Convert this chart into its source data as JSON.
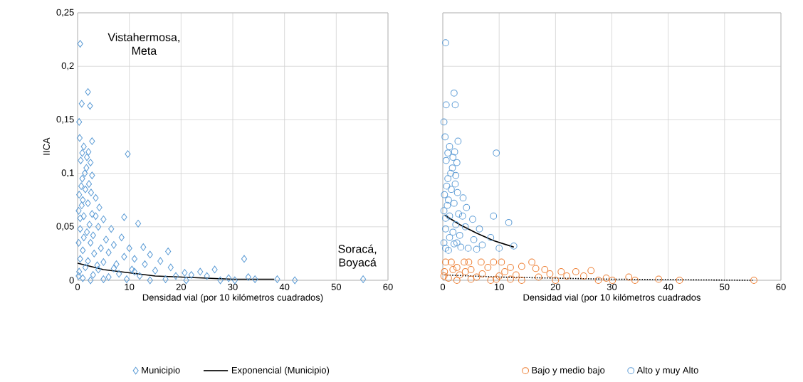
{
  "chart_data": [
    {
      "type": "scatter",
      "xlabel": "Densidad vial (por 10 kilómetros cuadrados)",
      "ylabel": "IICA",
      "xlim": [
        0,
        60
      ],
      "xticks": [
        0,
        10,
        20,
        30,
        40,
        50,
        60
      ],
      "ylim": [
        0,
        0.25
      ],
      "yticks": [
        {
          "value": 0,
          "label": "0"
        },
        {
          "value": 0.05,
          "label": "0,05"
        },
        {
          "value": 0.1,
          "label": "0,1"
        },
        {
          "value": 0.15,
          "label": "0,15"
        },
        {
          "value": 0.2,
          "label": "0,2"
        },
        {
          "value": 0.25,
          "label": "0,25"
        }
      ],
      "grid": true,
      "legend": "bottom",
      "annotations": [
        {
          "text": "Vistahermosa, Meta",
          "x": 0.5,
          "y": 0.221
        },
        {
          "text": "Soracá, Boyacá",
          "x": 55.2,
          "y": 0.001
        }
      ],
      "series": [
        {
          "name": "Municipio",
          "type": "scatter",
          "marker": "diamond",
          "color": "#5b9bd5",
          "x": [
            0.5,
            2,
            0.8,
            2.4,
            0.3,
            0.4,
            2.8,
            9.7,
            1.2,
            1.8,
            2.5,
            0.6,
            2.8,
            1.4,
            0.9,
            2.2,
            0.3,
            1.5,
            3.5,
            0.8,
            2,
            0.2,
            1.2,
            2.8,
            9,
            11.7,
            5,
            4,
            6.5,
            0.5,
            1.8,
            3,
            8.5,
            5.5,
            0.2,
            2.5,
            7,
            10,
            12.7,
            4.5,
            1,
            17.5,
            6,
            14,
            3.2,
            9,
            11,
            0.5,
            2,
            16,
            32.2,
            5,
            13,
            7.5,
            18,
            1.5,
            4,
            10.5,
            15,
            20.7,
            23.7,
            26.5,
            22,
            19,
            8,
            0.3,
            3,
            12,
            6,
            25,
            27.6,
            29.2,
            30.4,
            33,
            34.3,
            38.6,
            42,
            55.2,
            1,
            2.5,
            5,
            9.5,
            14,
            17,
            21,
            0.2,
            11,
            7,
            3.8,
            1.2,
            0.5,
            2.3,
            3.5,
            4.2,
            1,
            0.7,
            2.6,
            1.7,
            0.9,
            2.1
          ],
          "values": [
            0.221,
            0.176,
            0.165,
            0.163,
            0.148,
            0.133,
            0.13,
            0.118,
            0.125,
            0.115,
            0.11,
            0.112,
            0.098,
            0.1,
            0.095,
            0.09,
            0.08,
            0.085,
            0.077,
            0.07,
            0.072,
            0.065,
            0.06,
            0.062,
            0.059,
            0.053,
            0.057,
            0.05,
            0.048,
            0.048,
            0.045,
            0.042,
            0.04,
            0.038,
            0.035,
            0.035,
            0.033,
            0.03,
            0.031,
            0.03,
            0.028,
            0.027,
            0.026,
            0.024,
            0.025,
            0.022,
            0.02,
            0.02,
            0.018,
            0.018,
            0.02,
            0.017,
            0.015,
            0.015,
            0.012,
            0.012,
            0.01,
            0.01,
            0.009,
            0.007,
            0.008,
            0.01,
            0.005,
            0.004,
            0.006,
            0.008,
            0.005,
            0.004,
            0.003,
            0.004,
            0,
            0.002,
            0,
            0.003,
            0.001,
            0.001,
            0,
            0.001,
            0.002,
            0,
            0.001,
            0.001,
            0,
            0.001,
            0,
            0.004,
            0.008,
            0.011,
            0.014,
            0.04,
            0.058,
            0.052,
            0.06,
            0.068,
            0.075,
            0.088,
            0.082,
            0.105,
            0.119,
            0.12
          ]
        },
        {
          "name": "Exponencial (Municipio)",
          "type": "line",
          "marker": "none",
          "line_style": "solid",
          "color": "#000000",
          "x": [
            0,
            5,
            10,
            15,
            20,
            25,
            30,
            38
          ],
          "values": [
            0.016,
            0.01,
            0.007,
            0.004,
            0.003,
            0.002,
            0.001,
            0.001
          ]
        }
      ]
    },
    {
      "type": "scatter",
      "xlabel": "Densidad vial (por 10 kilómetros cuadrados",
      "xlim": [
        0,
        60
      ],
      "xticks": [
        0,
        10,
        20,
        30,
        40,
        50,
        60
      ],
      "ylim": [
        0,
        0.25
      ],
      "yticks": [
        {
          "value": 0,
          "label": null
        },
        {
          "value": 0.05,
          "label": null
        },
        {
          "value": 0.1,
          "label": null
        },
        {
          "value": 0.15,
          "label": null
        },
        {
          "value": 0.2,
          "label": null
        },
        {
          "value": 0.25,
          "label": null
        }
      ],
      "tick_labels": "x",
      "grid": true,
      "legend": "bottom",
      "series": [
        {
          "name": "Bajo y medio bajo",
          "type": "scatter",
          "marker": "circle",
          "color": "#ed7d31",
          "x": [
            0.5,
            1.5,
            3.8,
            4.6,
            6.8,
            9,
            10.4,
            15.8,
            18.1,
            21,
            23.6,
            26.3,
            27.6,
            30.1,
            33,
            34.1,
            38.3,
            42,
            55.2,
            14,
            12,
            16.5,
            8,
            2.5,
            5,
            11,
            19,
            13,
            7,
            0.3,
            3,
            17,
            22,
            25,
            29,
            1,
            2.5,
            5,
            9.5,
            14,
            20,
            0.2,
            6,
            10,
            4,
            1.8,
            12,
            8.5
          ],
          "values": [
            0.017,
            0.017,
            0.017,
            0.017,
            0.017,
            0.017,
            0.017,
            0.017,
            0.01,
            0.008,
            0.008,
            0.009,
            0,
            0,
            0.003,
            0,
            0.001,
            0,
            0,
            0.013,
            0.012,
            0.011,
            0.012,
            0.012,
            0.01,
            0.008,
            0.006,
            0.005,
            0.006,
            0.008,
            0.005,
            0.003,
            0.004,
            0.004,
            0.002,
            0.002,
            0,
            0.001,
            0.001,
            0,
            0,
            0.004,
            0.003,
            0.004,
            0.008,
            0.01,
            0.001,
            0
          ]
        },
        {
          "name": "Alto y muy Alto",
          "type": "scatter",
          "marker": "circle",
          "color": "#5b9bd5",
          "x": [
            0.5,
            2,
            0.6,
            2.2,
            0.2,
            0.4,
            2.7,
            9.5,
            1.2,
            1.8,
            2.5,
            0.6,
            2.3,
            1.4,
            0.9,
            2.2,
            0.3,
            1.5,
            3.6,
            0.8,
            2,
            0.2,
            1.2,
            2.8,
            9,
            11.7,
            5.3,
            4,
            6.5,
            0.5,
            1.8,
            3,
            8.5,
            5.5,
            0.2,
            2.5,
            7,
            10,
            12.6,
            4.5,
            1,
            3.2,
            6,
            0.5,
            2,
            1.2,
            0.5,
            2.3,
            3.5,
            4.2,
            1,
            0.7,
            2.6,
            1.7,
            0.9,
            2.1
          ],
          "values": [
            0.222,
            0.175,
            0.164,
            0.164,
            0.148,
            0.134,
            0.13,
            0.119,
            0.125,
            0.115,
            0.11,
            0.112,
            0.098,
            0.1,
            0.095,
            0.09,
            0.08,
            0.085,
            0.077,
            0.07,
            0.072,
            0.065,
            0.06,
            0.062,
            0.06,
            0.054,
            0.057,
            0.05,
            0.048,
            0.048,
            0.045,
            0.042,
            0.04,
            0.038,
            0.035,
            0.035,
            0.033,
            0.03,
            0.032,
            0.03,
            0.028,
            0.031,
            0.029,
            0.03,
            0.034,
            0.04,
            0.058,
            0.052,
            0.06,
            0.068,
            0.075,
            0.088,
            0.082,
            0.105,
            0.119,
            0.12
          ]
        },
        {
          "type": "line",
          "marker": "none",
          "line_style": "solid",
          "color": "#000000",
          "x": [
            0.3,
            3,
            6,
            9,
            12.6
          ],
          "values": [
            0.061,
            0.052,
            0.044,
            0.037,
            0.031
          ]
        },
        {
          "type": "line",
          "marker": "none",
          "line_style": "dotted",
          "color": "#000000",
          "x": [
            0.3,
            10,
            20,
            30,
            55
          ],
          "values": [
            0.005,
            0.003,
            0.002,
            0.001,
            0
          ]
        }
      ]
    }
  ]
}
